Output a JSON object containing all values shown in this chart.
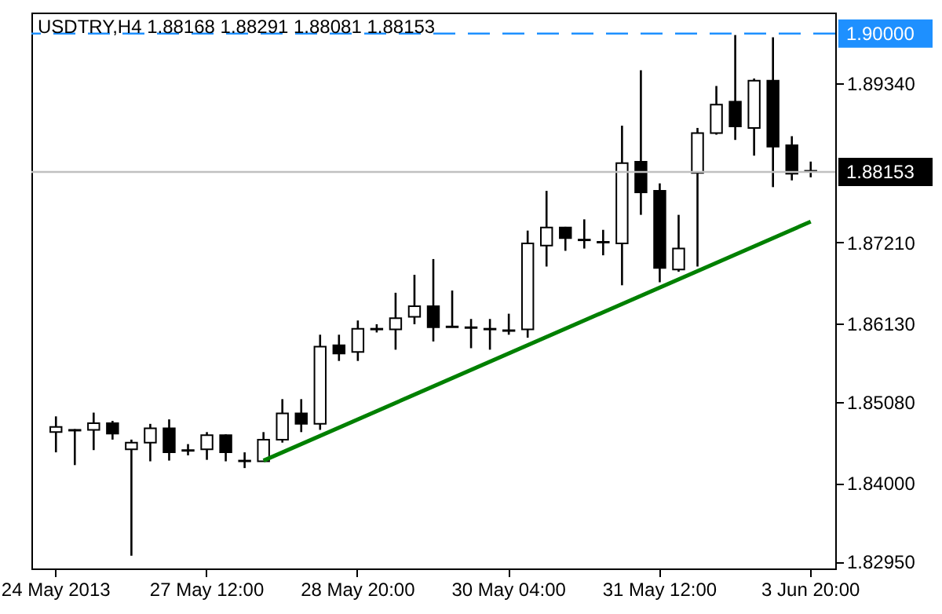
{
  "chart_data": {
    "type": "candlestick",
    "title": "USDTRY,H4  1.88168 1.88291 1.88081 1.88153",
    "categories": [
      "24 May 2013",
      null,
      null,
      null,
      null,
      null,
      null,
      null,
      "27 May 12:00",
      null,
      null,
      null,
      null,
      null,
      null,
      null,
      "28 May 20:00",
      null,
      null,
      null,
      null,
      null,
      null,
      null,
      "30 May 04:00",
      null,
      null,
      null,
      null,
      null,
      null,
      null,
      "31 May 12:00",
      null,
      null,
      null,
      null,
      null,
      null,
      null,
      "3 Jun 20:00"
    ],
    "ohlc": [
      [
        1.8468,
        1.8489,
        1.8441,
        1.8475
      ],
      [
        1.8471,
        1.8472,
        1.8424,
        1.847
      ],
      [
        1.8471,
        1.8494,
        1.8444,
        1.848
      ],
      [
        1.848,
        1.8483,
        1.8458,
        1.8466
      ],
      [
        1.8445,
        1.8458,
        1.8303,
        1.8454
      ],
      [
        1.8454,
        1.8479,
        1.8429,
        1.8473
      ],
      [
        1.8473,
        1.8485,
        1.843,
        1.8441
      ],
      [
        1.8444,
        1.8452,
        1.8437,
        1.8443
      ],
      [
        1.8445,
        1.8468,
        1.8431,
        1.8464
      ],
      [
        1.8464,
        1.8465,
        1.8429,
        1.8441
      ],
      [
        1.843,
        1.8441,
        1.842,
        1.8429
      ],
      [
        1.8429,
        1.8468,
        1.8429,
        1.8458
      ],
      [
        1.8458,
        1.8512,
        1.8454,
        1.8493
      ],
      [
        1.8493,
        1.8512,
        1.8468,
        1.8479
      ],
      [
        1.8479,
        1.8598,
        1.8471,
        1.8582
      ],
      [
        1.8584,
        1.8598,
        1.8563,
        1.8573
      ],
      [
        1.8575,
        1.8617,
        1.8563,
        1.8606
      ],
      [
        1.8606,
        1.8612,
        1.8601,
        1.8605
      ],
      [
        1.8605,
        1.8654,
        1.8578,
        1.862
      ],
      [
        1.8622,
        1.8678,
        1.8612,
        1.8636
      ],
      [
        1.8636,
        1.8699,
        1.8589,
        1.8608
      ],
      [
        1.8609,
        1.8657,
        1.8608,
        1.8608
      ],
      [
        1.8608,
        1.8619,
        1.858,
        1.8607
      ],
      [
        1.8606,
        1.8619,
        1.8578,
        1.8605
      ],
      [
        1.8603,
        1.8626,
        1.8598,
        1.8604
      ],
      [
        1.8605,
        1.8737,
        1.8594,
        1.872
      ],
      [
        1.8717,
        1.879,
        1.8689,
        1.8741
      ],
      [
        1.8741,
        1.8742,
        1.871,
        1.8727
      ],
      [
        1.8725,
        1.8752,
        1.8713,
        1.8724
      ],
      [
        1.8722,
        1.8738,
        1.8704,
        1.8721
      ],
      [
        1.872,
        1.8877,
        1.8664,
        1.8827
      ],
      [
        1.8829,
        1.8951,
        1.8758,
        1.8788
      ],
      [
        1.879,
        1.88,
        1.8668,
        1.8687
      ],
      [
        1.8685,
        1.8758,
        1.8682,
        1.8713
      ],
      [
        1.8814,
        1.8874,
        1.8689,
        1.8867
      ],
      [
        1.8867,
        1.893,
        1.8865,
        1.8905
      ],
      [
        1.8909,
        1.8998,
        1.8858,
        1.8876
      ],
      [
        1.8874,
        1.894,
        1.8837,
        1.8937
      ],
      [
        1.8937,
        1.8995,
        1.8795,
        1.8849
      ],
      [
        1.8851,
        1.8863,
        1.8804,
        1.8813
      ],
      [
        1.88168,
        1.88291,
        1.88081,
        1.88153
      ]
    ],
    "series": [
      {
        "type": "line",
        "color": "#008000",
        "values": [
          null,
          null,
          null,
          null,
          null,
          null,
          null,
          null,
          null,
          null,
          null,
          1.843,
          null,
          null,
          null,
          null,
          null,
          null,
          null,
          null,
          null,
          null,
          null,
          null,
          null,
          null,
          null,
          null,
          null,
          null,
          null,
          null,
          null,
          null,
          null,
          null,
          null,
          null,
          null,
          null,
          1.8749
        ]
      }
    ],
    "ylim": [
      1.8286,
      1.9028
    ],
    "yticks": [
      {
        "value": 1.8295,
        "label": "1.82950"
      },
      {
        "value": 1.84,
        "label": "1.84000"
      },
      {
        "value": 1.8508,
        "label": "1.85080"
      },
      {
        "value": 1.8613,
        "label": "1.86130"
      },
      {
        "value": 1.8721,
        "label": "1.87210"
      },
      {
        "value": 1.8934,
        "label": "1.89340"
      }
    ],
    "ref_lines": [
      {
        "axis": "y",
        "value": 1.9,
        "label": "1.90000",
        "color": "#1e90ff",
        "line_style": "dashed"
      },
      {
        "axis": "y",
        "value": 1.88153,
        "label": "1.88153",
        "color": "#c0c0c0",
        "line_style": "solid"
      }
    ],
    "grid": false
  }
}
